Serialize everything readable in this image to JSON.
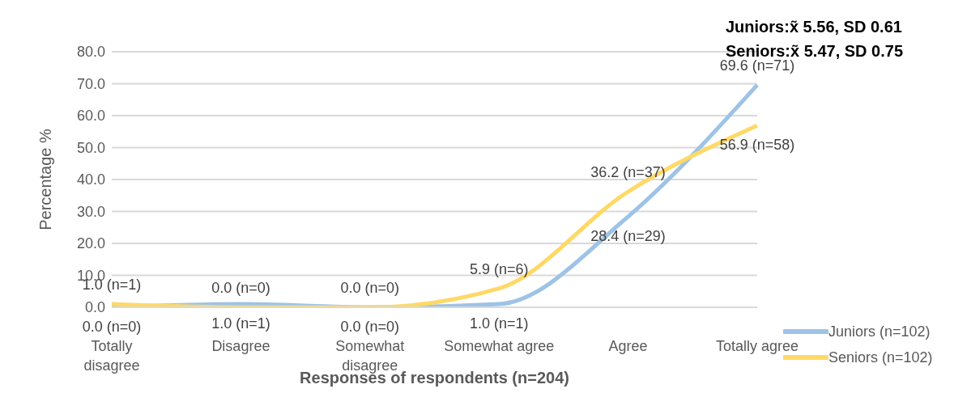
{
  "chart_data": {
    "type": "line",
    "xlabel": "Responses of respondents (n=204)",
    "ylabel": "Percentage %",
    "categories": [
      "Totally disagree",
      "Disagree",
      "Somewhat disagree",
      "Somewhat agree",
      "Agree",
      "Totally agree"
    ],
    "series": [
      {
        "name": "Juniors (n=102)",
        "color": "#9dc3e6",
        "values": [
          0.0,
          1.0,
          0.0,
          1.0,
          28.4,
          69.6
        ],
        "value_labels": [
          "0.0 (n=0)",
          "1.0 (n=1)",
          "0.0 (n=0)",
          "1.0 (n=1)",
          "28.4 (n=29)",
          "69.6 (n=71)"
        ]
      },
      {
        "name": "Seniors (n=102)",
        "color": "#ffd966",
        "values": [
          1.0,
          0.0,
          0.0,
          5.9,
          36.2,
          56.9
        ],
        "value_labels": [
          "1.0 (n=1)",
          "0.0 (n=0)",
          "0.0 (n=0)",
          "5.9 (n=6)",
          "36.2 (n=37)",
          "56.9 (n=58)"
        ]
      }
    ],
    "ylim": [
      0,
      80
    ],
    "yticks": [
      {
        "value": 0,
        "label": "0.0"
      },
      {
        "value": 10,
        "label": "10.0"
      },
      {
        "value": 20,
        "label": "20.0"
      },
      {
        "value": 30,
        "label": "30.0"
      },
      {
        "value": 40,
        "label": "40.0"
      },
      {
        "value": 50,
        "label": "50.0"
      },
      {
        "value": 60,
        "label": "60.0"
      },
      {
        "value": 70,
        "label": "70.0"
      },
      {
        "value": 80,
        "label": "80.0"
      }
    ],
    "grid": "y",
    "legend": "bottom right",
    "marker": "none",
    "line_style": "solid",
    "annotations": [
      "Juniors:x̃ 5.56, SD 0.61",
      "Seniors:x̃ 5.47, SD 0.75"
    ]
  }
}
